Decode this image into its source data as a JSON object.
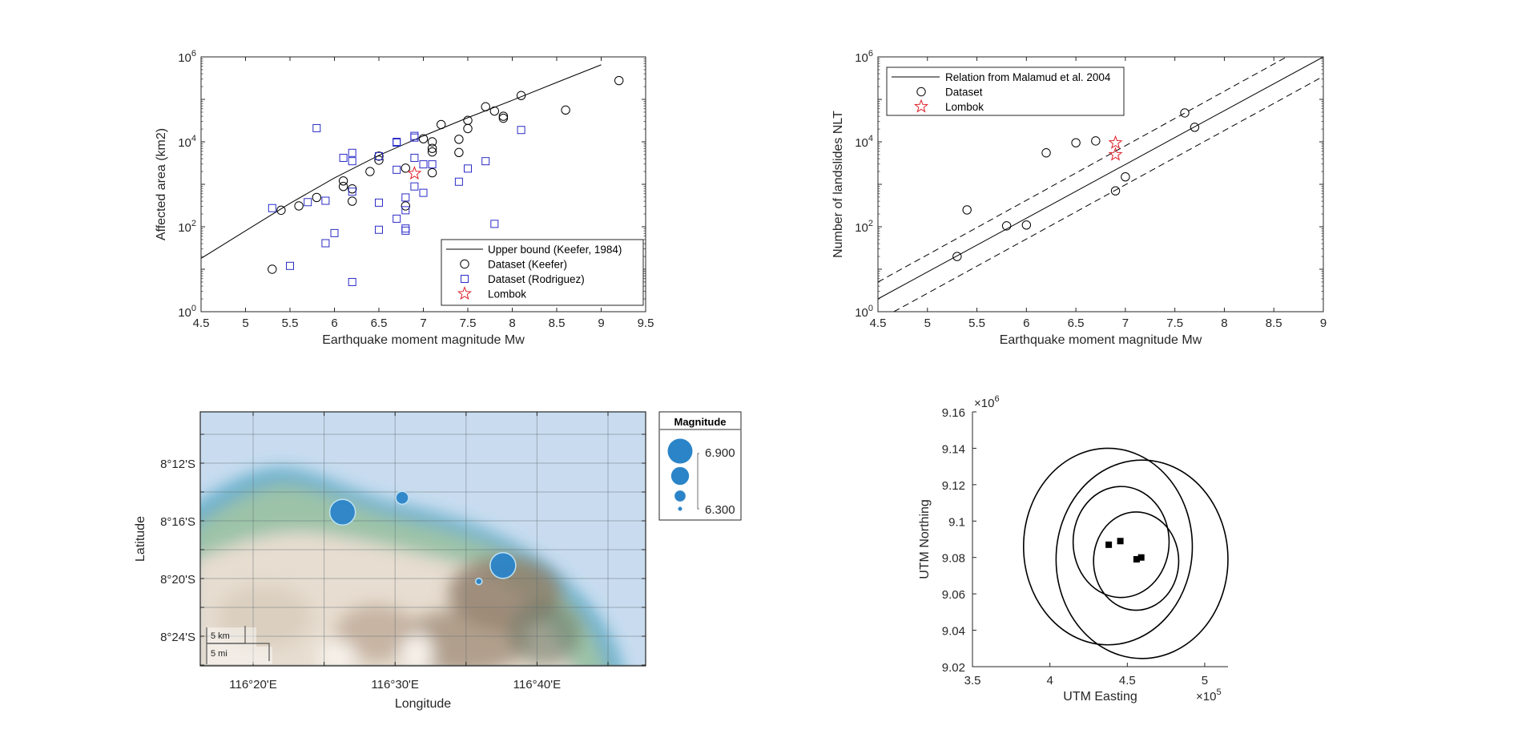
{
  "chart_data": [
    {
      "id": "affected-area",
      "type": "scatter",
      "title": "",
      "xlabel": "Earthquake moment magnitude Mw",
      "ylabel": "Affected area (km2)",
      "xlim": [
        4.5,
        9.5
      ],
      "ylim": [
        1,
        1000000
      ],
      "yscale": "log",
      "xticks": [
        "4.5",
        "5",
        "5.5",
        "6",
        "6.5",
        "7",
        "7.5",
        "8",
        "8.5",
        "9",
        "9.5"
      ],
      "yticks": [
        {
          "base": "10",
          "exp": "0"
        },
        {
          "base": "10",
          "exp": "2"
        },
        {
          "base": "10",
          "exp": "4"
        },
        {
          "base": "10",
          "exp": "6"
        }
      ],
      "legend_position": "bottom-right",
      "series": [
        {
          "name": "Upper bound (Keefer, 1984)",
          "kind": "line",
          "color": "#000000",
          "x": [
            4.5,
            5.0,
            5.5,
            6.0,
            6.5,
            7.0,
            7.5,
            8.0,
            8.5,
            9.0
          ],
          "y": [
            18,
            80,
            355,
            1410,
            4800,
            13800,
            37000,
            95000,
            250000,
            650000
          ]
        },
        {
          "name": "Dataset (Keefer)",
          "kind": "circle",
          "color": "#000000",
          "x": [
            5.3,
            5.4,
            5.6,
            5.8,
            6.1,
            6.1,
            6.2,
            6.2,
            6.4,
            6.5,
            6.5,
            6.8,
            6.8,
            7.0,
            7.1,
            7.1,
            7.1,
            7.1,
            7.2,
            7.4,
            7.4,
            7.5,
            7.5,
            7.7,
            7.8,
            7.9,
            7.9,
            8.1,
            8.6,
            9.2
          ],
          "y": [
            10,
            245,
            310,
            490,
            1200,
            890,
            780,
            400,
            2000,
            4600,
            3700,
            2400,
            310,
            11800,
            10000,
            7000,
            5800,
            1870,
            25500,
            11500,
            5600,
            32000,
            20500,
            67000,
            53000,
            40000,
            36000,
            123000,
            56000,
            277000
          ]
        },
        {
          "name": "Dataset (Rodriguez)",
          "kind": "square",
          "color": "#2b2bc8",
          "x": [
            5.3,
            5.5,
            5.7,
            5.8,
            5.9,
            5.9,
            6.0,
            6.1,
            6.2,
            6.2,
            6.2,
            6.2,
            6.5,
            6.5,
            6.5,
            6.7,
            6.7,
            6.7,
            6.7,
            6.8,
            6.8,
            6.8,
            6.8,
            6.9,
            6.9,
            6.9,
            6.9,
            7.0,
            7.0,
            7.1,
            7.4,
            7.5,
            7.7,
            7.8,
            8.1
          ],
          "y": [
            275,
            12,
            380,
            21000,
            410,
            41,
            71,
            4200,
            5500,
            3500,
            670,
            5,
            4600,
            370,
            85,
            10000,
            9600,
            2200,
            155,
            490,
            245,
            91,
            81,
            13800,
            12600,
            4200,
            890,
            2950,
            630,
            2950,
            1150,
            2350,
            3500,
            117,
            19000
          ]
        },
        {
          "name": "Lombok",
          "kind": "star",
          "color": "#e0202a",
          "x": [
            6.9
          ],
          "y": [
            1800
          ]
        }
      ]
    },
    {
      "id": "landslides-count",
      "type": "scatter",
      "title": "",
      "xlabel": "Earthquake moment magnitude Mw",
      "ylabel": "Number of landslides NLT",
      "xlim": [
        4.5,
        9.0
      ],
      "ylim": [
        1,
        1000000
      ],
      "yscale": "log",
      "xticks": [
        "4.5",
        "5",
        "5.5",
        "6",
        "6.5",
        "7",
        "7.5",
        "8",
        "8.5",
        "9"
      ],
      "yticks": [
        {
          "base": "10",
          "exp": "0"
        },
        {
          "base": "10",
          "exp": "2"
        },
        {
          "base": "10",
          "exp": "4"
        },
        {
          "base": "10",
          "exp": "6"
        }
      ],
      "legend_position": "top-left",
      "series": [
        {
          "name": "Relation from Malamud et al. 2004",
          "kind": "line",
          "color": "#000000",
          "x": [
            4.5,
            9.0
          ],
          "y": [
            2,
            1000000
          ]
        },
        {
          "name": "Upper bound (dashed)",
          "kind": "dashed",
          "legend": false,
          "color": "#000000",
          "x": [
            4.5,
            8.63
          ],
          "y": [
            5,
            1000000
          ]
        },
        {
          "name": "Lower bound (dashed)",
          "kind": "dashed",
          "legend": false,
          "color": "#000000",
          "x": [
            4.66,
            9.0
          ],
          "y": [
            1,
            350000
          ]
        },
        {
          "name": "Dataset",
          "kind": "circle",
          "color": "#000000",
          "x": [
            5.3,
            5.4,
            5.8,
            6.0,
            6.2,
            6.5,
            6.7,
            6.9,
            7.0,
            7.6,
            7.7
          ],
          "y": [
            20,
            250,
            105,
            110,
            5500,
            9500,
            10500,
            700,
            1500,
            48000,
            22000
          ]
        },
        {
          "name": "Lombok",
          "kind": "star",
          "color": "#e0202a",
          "x": [
            6.9,
            6.9
          ],
          "y": [
            9500,
            5000
          ]
        }
      ]
    },
    {
      "id": "epicenter-map",
      "type": "scatter",
      "subtype": "geobubble",
      "xlabel": "Longitude",
      "ylabel": "Latitude",
      "xlim_minutes": [
        16.3,
        47.7
      ],
      "ylim_minutes": [
        8.4,
        26.1
      ],
      "lon_degrees": 116,
      "lat_degrees": 8,
      "xticks": [
        {
          "min": 20,
          "label": "116°20'E"
        },
        {
          "min": 30,
          "label": "116°30'E"
        },
        {
          "min": 40,
          "label": "116°40'E"
        }
      ],
      "yticks": [
        {
          "min": 12,
          "label": "8°12'S"
        },
        {
          "min": 16,
          "label": "8°16'S"
        },
        {
          "min": 20,
          "label": "8°20'S"
        },
        {
          "min": 24,
          "label": "8°24'S"
        }
      ],
      "bubble_color": "#2b84c8",
      "points": [
        {
          "lon_min": 26.3,
          "lat_min": 15.4,
          "magnitude": 6.9
        },
        {
          "lon_min": 30.5,
          "lat_min": 14.4,
          "magnitude": 6.5
        },
        {
          "lon_min": 37.6,
          "lat_min": 19.1,
          "magnitude": 6.9
        },
        {
          "lon_min": 35.9,
          "lat_min": 20.2,
          "magnitude": 6.3
        }
      ],
      "legend": {
        "title": "Magnitude",
        "max_label": "6.900",
        "min_label": "6.300",
        "sizes": [
          6.9,
          6.7,
          6.5,
          6.3
        ]
      },
      "scalebar": {
        "km_label": "5 km",
        "mi_label": "5 mi"
      }
    },
    {
      "id": "utm-ellipses",
      "type": "scatter",
      "xlabel": "UTM Easting",
      "ylabel": "UTM Northing",
      "x_multiplier": "×10",
      "x_multiplier_exp": "5",
      "y_multiplier": "×10",
      "y_multiplier_exp": "6",
      "xlim": [
        3.5,
        5.15
      ],
      "ylim": [
        9.02,
        9.16
      ],
      "xticks": [
        "3.5",
        "4",
        "4.5",
        "5"
      ],
      "yticks": [
        "9.02",
        "9.04",
        "9.06",
        "9.08",
        "9.1",
        "9.12",
        "9.14",
        "9.16"
      ],
      "ellipses": [
        {
          "cx": 4.375,
          "cy": 9.086,
          "rx": 0.545,
          "ry": 0.054
        },
        {
          "cx": 4.595,
          "cy": 9.079,
          "rx": 0.555,
          "ry": 0.0545
        },
        {
          "cx": 4.46,
          "cy": 9.0885,
          "rx": 0.31,
          "ry": 0.0305
        },
        {
          "cx": 4.557,
          "cy": 9.078,
          "rx": 0.275,
          "ry": 0.027
        }
      ],
      "points": {
        "x": [
          4.38,
          4.455,
          4.56,
          4.59
        ],
        "y": [
          9.087,
          9.089,
          9.079,
          9.08
        ]
      }
    }
  ]
}
